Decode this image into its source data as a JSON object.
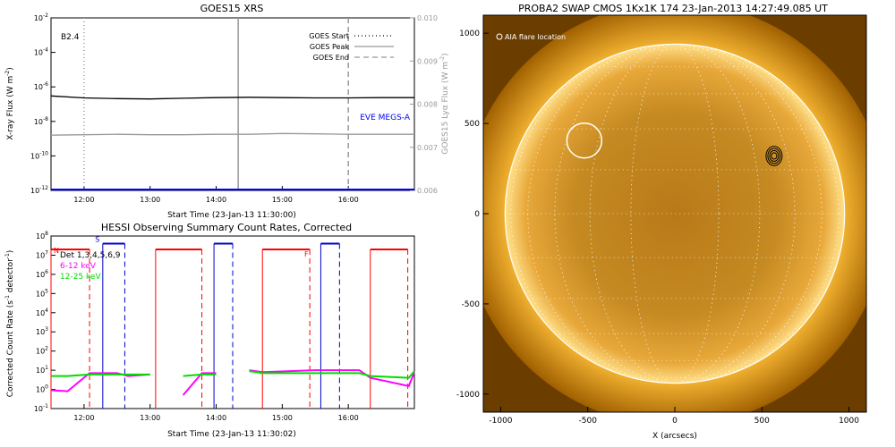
{
  "chart_data": [
    {
      "type": "line",
      "title": "GOES15 XRS",
      "xlabel": "Start Time (23-Jan-13 11:30:00)",
      "ylabel": "X-ray Flux (W m^-2)",
      "ylabel_parts": [
        "X-ray Flux (W m",
        "-2",
        ")"
      ],
      "y2label": "GOES15 Lyα Flux (W m^-2)",
      "y2label_parts": [
        "GOES15 Lyα Flux (W m",
        "-2",
        ")"
      ],
      "xlim": [
        "11:30",
        "17:00"
      ],
      "x_ticks": [
        "12:00",
        "13:00",
        "14:00",
        "15:00",
        "16:00"
      ],
      "y_scale": "log",
      "ylim": [
        1e-12,
        0.01
      ],
      "y_tick_mantissa": "10",
      "y_tick_exponents": [
        "-2",
        "-4",
        "-6",
        "-8",
        "-10",
        "-12"
      ],
      "y2lim": [
        0.006,
        0.01
      ],
      "y2_ticks": [
        "0.010",
        "0.009",
        "0.008",
        "0.007",
        "0.006"
      ],
      "class_label": "B2.4",
      "annotation": "EVE MEGS-A",
      "legend": [
        {
          "label": "GOES Start",
          "style": "dotted",
          "color": "#000000"
        },
        {
          "label": "GOES Peak",
          "style": "solid",
          "color": "#999999"
        },
        {
          "label": "GOES End",
          "style": "dashed",
          "color": "#999999"
        }
      ],
      "legend_position": "top-right",
      "vlines": [
        {
          "x": "12:00",
          "style": "dotted",
          "color": "#999999"
        },
        {
          "x": "14:20",
          "style": "solid",
          "color": "#999999"
        },
        {
          "x": "16:00",
          "style": "dashed",
          "color": "#999999"
        }
      ],
      "series": [
        {
          "name": "",
          "color": "#000000",
          "axis": "left",
          "x": [
            "11:30",
            "12:00",
            "12:30",
            "13:00",
            "13:30",
            "14:00",
            "14:30",
            "15:00",
            "15:30",
            "16:00",
            "16:30",
            "17:00"
          ],
          "values": [
            3e-07,
            2.3e-07,
            2.1e-07,
            2e-07,
            2.2e-07,
            2.4e-07,
            2.5e-07,
            2.4e-07,
            2.3e-07,
            2.3e-07,
            2.4e-07,
            2.4e-07
          ]
        },
        {
          "name": "",
          "color": "#999999",
          "axis": "left",
          "x": [
            "11:30",
            "12:00",
            "12:30",
            "13:00",
            "13:30",
            "14:00",
            "14:30",
            "15:00",
            "15:30",
            "16:00",
            "16:30",
            "17:00"
          ],
          "values": [
            1.6e-09,
            1.7e-09,
            1.8e-09,
            1.7e-09,
            1.7e-09,
            1.8e-09,
            1.8e-09,
            2e-09,
            1.9e-09,
            1.8e-09,
            1.8e-09,
            1.8e-09
          ]
        },
        {
          "name": "EVE MEGS-A",
          "color": "#0000ff",
          "axis": "left",
          "x": [
            "11:30",
            "17:00"
          ],
          "values": [
            1e-12,
            1e-12
          ]
        }
      ],
      "grid": false
    },
    {
      "type": "line",
      "title": "HESSI Observing Summary Count Rates, Corrected",
      "xlabel": "Start Time (23-Jan-13 11:30:02)",
      "ylabel": "Corrected Count Rate (s^-1 detector^-1)",
      "ylabel_parts": [
        "Corrected Count Rate (s",
        "-1",
        " detector",
        "-1",
        ")"
      ],
      "xlim": [
        "11:30",
        "17:00"
      ],
      "x_ticks": [
        "12:00",
        "13:00",
        "14:00",
        "15:00",
        "16:00"
      ],
      "y_scale": "log",
      "ylim": [
        0.1,
        100000000
      ],
      "y_tick_mantissa": "10",
      "y_tick_exponents": [
        "8",
        "7",
        "6",
        "5",
        "4",
        "3",
        "2",
        "1",
        "0",
        "-1"
      ],
      "legend_position": "top-left",
      "legend": [
        {
          "label": "Det 1,3,4,5,6,9",
          "color": "#000000"
        },
        {
          "label": "6-12 keV",
          "color": "#ff00ff"
        },
        {
          "label": "12-25 keV",
          "color": "#00dd00"
        }
      ],
      "annotations": [
        "N",
        "S",
        "F"
      ],
      "night_intervals": [
        [
          "11:30",
          "12:05"
        ],
        [
          "13:05",
          "13:47"
        ],
        [
          "14:42",
          "15:25"
        ],
        [
          "16:20",
          "16:54"
        ]
      ],
      "saa_intervals": [
        [
          "12:17",
          "12:37"
        ],
        [
          "13:58",
          "14:15"
        ],
        [
          "15:35",
          "15:52"
        ]
      ],
      "series": [
        {
          "name": "6-12 keV",
          "color": "#ff00ff",
          "x": [
            "11:30",
            "11:45",
            "12:05",
            "12:30",
            "12:40",
            "13:00",
            "13:05",
            "13:30",
            "13:47",
            "14:00",
            "14:15",
            "14:30",
            "14:42",
            "15:30",
            "15:50",
            "16:10",
            "16:20",
            "16:55",
            "17:00"
          ],
          "values": [
            0.9,
            0.8,
            7,
            7,
            5,
            6,
            null,
            0.5,
            7,
            7,
            null,
            10,
            8,
            10,
            10,
            10,
            4,
            1.5,
            8
          ]
        },
        {
          "name": "12-25 keV",
          "color": "#00dd00",
          "x": [
            "11:30",
            "11:45",
            "12:05",
            "12:30",
            "12:40",
            "13:00",
            "13:05",
            "13:30",
            "13:47",
            "14:00",
            "14:15",
            "14:30",
            "14:42",
            "15:30",
            "15:50",
            "16:10",
            "16:20",
            "16:55",
            "17:00"
          ],
          "values": [
            5,
            5,
            6,
            6,
            6,
            6,
            null,
            5,
            6,
            6,
            null,
            9,
            7,
            7,
            7,
            7,
            5,
            4,
            9
          ]
        }
      ],
      "grid": false
    },
    {
      "type": "image",
      "title": "PROBA2 SWAP CMOS 1Kx1K 174 23-Jan-2013 14:27:49.085 UT",
      "xlabel": "X (arcsecs)",
      "ylabel": "",
      "xlim": [
        -1100,
        1100
      ],
      "ylim": [
        -1100,
        1100
      ],
      "x_ticks": [
        "-1000",
        "-500",
        "0",
        "500",
        "1000"
      ],
      "y_ticks": [
        "1000",
        "500",
        "0",
        "-500",
        "-1000"
      ],
      "legend": [
        {
          "label": "AIA flare location",
          "symbol": "circle"
        }
      ],
      "legend_position": "top-left",
      "solar_radius": 975,
      "flare_location": {
        "x": -520,
        "y": 405
      },
      "contour_location": {
        "x": 570,
        "y": 320
      },
      "colors": {
        "sun": "#e8a020",
        "corona": "#f6c450",
        "background": "#000000"
      }
    }
  ]
}
